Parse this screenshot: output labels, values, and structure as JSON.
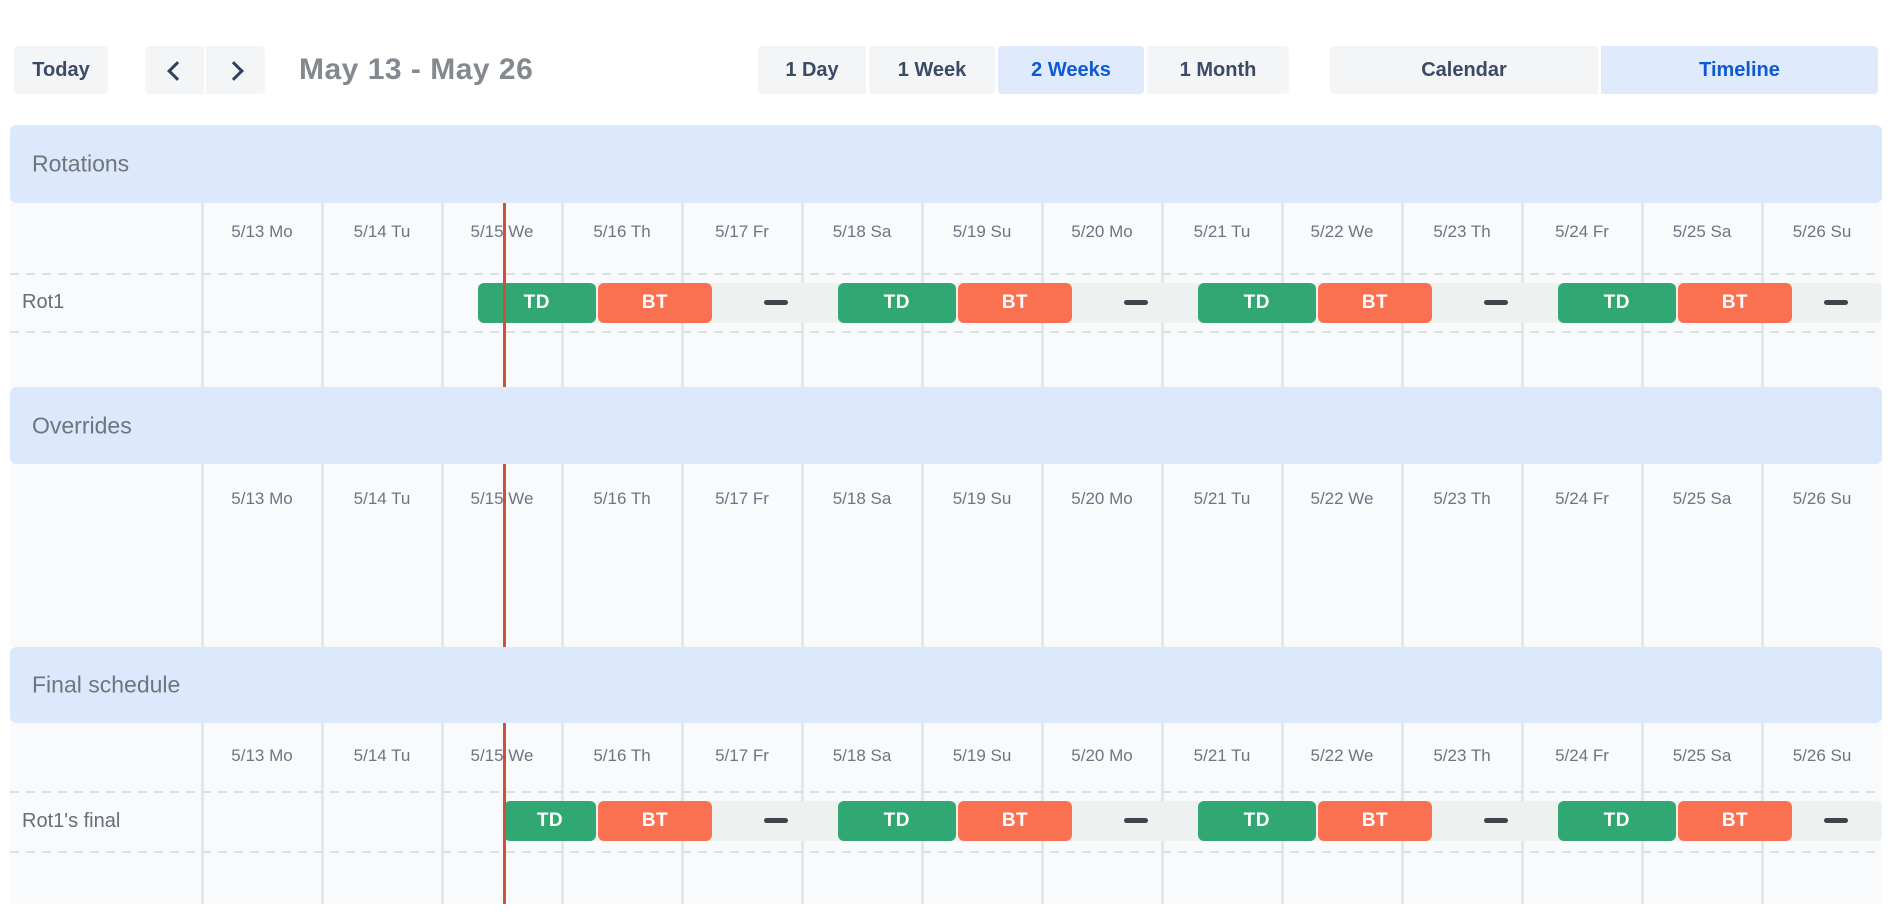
{
  "toolbar": {
    "today": "Today",
    "icons": {
      "prev": "chevron-left",
      "next": "chevron-right"
    },
    "range_title": "May 13 - May 26",
    "view_buttons": [
      {
        "label": "1 Day",
        "selected": false
      },
      {
        "label": "1 Week",
        "selected": false
      },
      {
        "label": "2 Weeks",
        "selected": true
      },
      {
        "label": "1 Month",
        "selected": false
      }
    ],
    "mode_buttons": [
      {
        "label": "Calendar",
        "selected": false
      },
      {
        "label": "Timeline",
        "selected": true
      }
    ]
  },
  "timeline": {
    "day_labels": [
      "5/13 Mo",
      "5/14 Tu",
      "5/15 We",
      "5/16 Th",
      "5/17 Fr",
      "5/18 Sa",
      "5/19 Su",
      "5/20 Mo",
      "5/21 Tu",
      "5/22 We",
      "5/23 Th",
      "5/24 Fr",
      "5/25 Sa",
      "5/26 Su"
    ],
    "now_day": 2.52
  },
  "sections": [
    {
      "id": "rotations",
      "title": "Rotations",
      "rows": [
        {
          "label": "Rot1",
          "strip": {
            "start": 2.3,
            "end": 14
          },
          "gap_dashes": [
            4.78,
            7.78,
            10.78,
            13.62
          ],
          "bars": [
            {
              "label": "TD",
              "type": "td",
              "start": 2.3,
              "end": 3.28
            },
            {
              "label": "BT",
              "type": "bt",
              "start": 3.3,
              "end": 4.25
            },
            {
              "label": "TD",
              "type": "td",
              "start": 5.3,
              "end": 6.28
            },
            {
              "label": "BT",
              "type": "bt",
              "start": 6.3,
              "end": 7.25
            },
            {
              "label": "TD",
              "type": "td",
              "start": 8.3,
              "end": 9.28
            },
            {
              "label": "BT",
              "type": "bt",
              "start": 9.3,
              "end": 10.25
            },
            {
              "label": "TD",
              "type": "td",
              "start": 11.3,
              "end": 12.28
            },
            {
              "label": "BT",
              "type": "bt",
              "start": 12.3,
              "end": 13.25
            }
          ]
        }
      ]
    },
    {
      "id": "overrides",
      "title": "Overrides",
      "rows": []
    },
    {
      "id": "final",
      "title": "Final schedule",
      "rows": [
        {
          "label": "Rot1's final",
          "strip": {
            "start": 2.52,
            "end": 14
          },
          "gap_dashes": [
            4.78,
            7.78,
            10.78,
            13.62
          ],
          "bars": [
            {
              "label": "TD",
              "type": "td",
              "start": 2.52,
              "end": 3.28
            },
            {
              "label": "BT",
              "type": "bt",
              "start": 3.3,
              "end": 4.25
            },
            {
              "label": "TD",
              "type": "td",
              "start": 5.3,
              "end": 6.28
            },
            {
              "label": "BT",
              "type": "bt",
              "start": 6.3,
              "end": 7.25
            },
            {
              "label": "TD",
              "type": "td",
              "start": 8.3,
              "end": 9.28
            },
            {
              "label": "BT",
              "type": "bt",
              "start": 9.3,
              "end": 10.25
            },
            {
              "label": "TD",
              "type": "td",
              "start": 11.3,
              "end": 12.28
            },
            {
              "label": "BT",
              "type": "bt",
              "start": 12.3,
              "end": 13.25
            }
          ]
        }
      ]
    }
  ],
  "colors": {
    "td_green": "#31a873",
    "bt_orange": "#fa7152",
    "now_line": "#d44c3c",
    "section_band": "#dce8fb",
    "selected_bg": "#dfeafc",
    "selected_text": "#0f59d3"
  }
}
